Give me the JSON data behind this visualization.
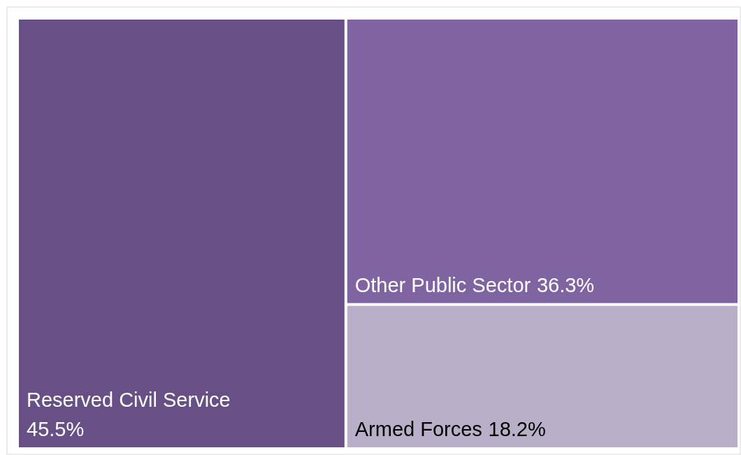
{
  "chart_data": {
    "type": "other",
    "categories": [
      "Reserved Civil Service",
      "Other Public Sector",
      "Armed Forces"
    ],
    "values": [
      45.5,
      36.3,
      18.2
    ],
    "colors": [
      "#684f86",
      "#8064a2",
      "#b9afc9"
    ],
    "value_labels": [
      "45.5%",
      "36.3%",
      "18.2%"
    ]
  }
}
